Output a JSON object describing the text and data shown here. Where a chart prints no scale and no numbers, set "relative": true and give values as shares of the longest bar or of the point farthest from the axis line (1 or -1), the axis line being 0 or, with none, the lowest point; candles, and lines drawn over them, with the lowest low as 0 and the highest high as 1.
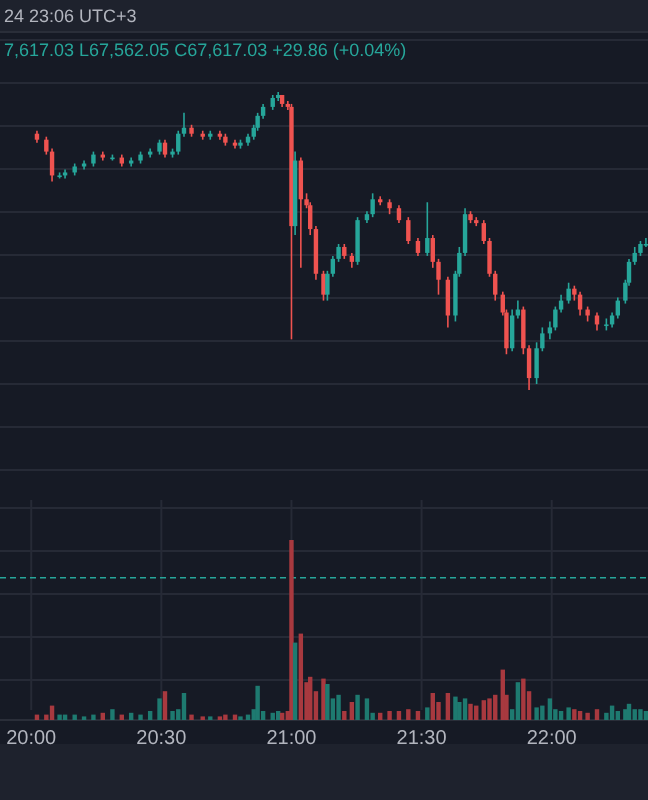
{
  "chart_data": [
    {
      "type": "candlestick",
      "relative": true,
      "grid": true,
      "tick_labels": false,
      "colors": [
        "#ef5350",
        "#ef5350",
        "#ef5350",
        "#26a69a",
        "#26a69a",
        "#26a69a",
        "#26a69a",
        "#26a69a",
        "#ef5350",
        "#26a69a",
        "#ef5350",
        "#26a69a",
        "#26a69a",
        "#26a69a",
        "#26a69a",
        "#ef5350",
        "#26a69a",
        "#26a69a",
        "#26a69a",
        "#ef5350",
        "#ef5350",
        "#26a69a",
        "#ef5350",
        "#ef5350",
        "#ef5350",
        "#26a69a",
        "#26a69a",
        "#26a69a",
        "#26a69a",
        "#26a69a",
        "#26a69a",
        "#26a69a",
        "#ef5350",
        "#ef5350",
        "#ef5350",
        "#26a69a",
        "#ef5350",
        "#ef5350",
        "#ef5350",
        "#ef5350",
        "#ef5350",
        "#26a69a",
        "#26a69a",
        "#26a69a",
        "#ef5350",
        "#ef5350",
        "#26a69a",
        "#26a69a",
        "#26a69a",
        "#ef5350",
        "#ef5350",
        "#ef5350",
        "#ef5350",
        "#ef5350",
        "#26a69a",
        "#ef5350",
        "#ef5350",
        "#ef5350",
        "#26a69a",
        "#26a69a",
        "#26a69a",
        "#ef5350",
        "#ef5350",
        "#ef5350",
        "#ef5350",
        "#ef5350",
        "#ef5350",
        "#ef5350",
        "#26a69a",
        "#26a69a",
        "#ef5350",
        "#ef5350",
        "#26a69a",
        "#26a69a",
        "#26a69a",
        "#26a69a",
        "#26a69a",
        "#26a69a",
        "#ef5350",
        "#ef5350",
        "#ef5350",
        "#ef5350",
        "#26a69a",
        "#26a69a",
        "#26a69a",
        "#26a69a",
        "#26a69a",
        "#26a69a",
        "#26a69a",
        "#26a69a"
      ],
      "annotations": [
        "24 23:06 UTC+3",
        "7,617.03 L67,562.05 C67,617.03 +29.86 (+0.04%)"
      ],
      "xlim": [
        19.88,
        22.37
      ],
      "x": [
        20.022,
        20.058,
        20.08,
        20.109,
        20.13,
        20.167,
        20.203,
        20.239,
        20.275,
        20.312,
        20.348,
        20.384,
        20.42,
        20.457,
        20.493,
        20.514,
        20.543,
        20.565,
        20.587,
        20.616,
        20.659,
        20.688,
        20.725,
        20.746,
        20.783,
        20.804,
        20.833,
        20.855,
        20.87,
        20.891,
        20.928,
        20.949,
        20.964,
        20.986,
        21.0,
        21.014,
        21.036,
        21.058,
        21.072,
        21.094,
        21.123,
        21.138,
        21.159,
        21.181,
        21.203,
        21.232,
        21.254,
        21.29,
        21.312,
        21.341,
        21.377,
        21.413,
        21.449,
        21.486,
        21.522,
        21.543,
        21.565,
        21.601,
        21.63,
        21.645,
        21.667,
        21.688,
        21.71,
        21.739,
        21.761,
        21.783,
        21.812,
        21.826,
        21.848,
        21.87,
        21.891,
        21.913,
        21.942,
        21.964,
        21.993,
        22.014,
        22.036,
        22.065,
        22.087,
        22.109,
        22.138,
        22.174,
        22.21,
        22.232,
        22.254,
        22.283,
        22.297,
        22.319,
        22.341,
        22.362
      ],
      "ohlc": [
        [
          0.86,
          0.87,
          0.83,
          0.84
        ],
        [
          0.84,
          0.85,
          0.79,
          0.8
        ],
        [
          0.8,
          0.81,
          0.7,
          0.72
        ],
        [
          0.72,
          0.73,
          0.71,
          0.72
        ],
        [
          0.72,
          0.74,
          0.71,
          0.73
        ],
        [
          0.73,
          0.76,
          0.72,
          0.75
        ],
        [
          0.75,
          0.77,
          0.74,
          0.76
        ],
        [
          0.76,
          0.8,
          0.75,
          0.79
        ],
        [
          0.79,
          0.8,
          0.77,
          0.78
        ],
        [
          0.78,
          0.79,
          0.77,
          0.78
        ],
        [
          0.78,
          0.79,
          0.75,
          0.76
        ],
        [
          0.76,
          0.78,
          0.75,
          0.77
        ],
        [
          0.77,
          0.8,
          0.76,
          0.79
        ],
        [
          0.79,
          0.81,
          0.78,
          0.8
        ],
        [
          0.8,
          0.84,
          0.79,
          0.83
        ],
        [
          0.83,
          0.84,
          0.78,
          0.79
        ],
        [
          0.79,
          0.81,
          0.78,
          0.8
        ],
        [
          0.8,
          0.87,
          0.79,
          0.86
        ],
        [
          0.86,
          0.93,
          0.85,
          0.88
        ],
        [
          0.88,
          0.89,
          0.85,
          0.86
        ],
        [
          0.86,
          0.87,
          0.84,
          0.85
        ],
        [
          0.85,
          0.87,
          0.84,
          0.86
        ],
        [
          0.86,
          0.87,
          0.84,
          0.85
        ],
        [
          0.85,
          0.86,
          0.82,
          0.83
        ],
        [
          0.83,
          0.84,
          0.81,
          0.82
        ],
        [
          0.82,
          0.84,
          0.81,
          0.83
        ],
        [
          0.83,
          0.86,
          0.82,
          0.85
        ],
        [
          0.85,
          0.89,
          0.84,
          0.88
        ],
        [
          0.88,
          0.93,
          0.87,
          0.92
        ],
        [
          0.92,
          0.96,
          0.91,
          0.95
        ],
        [
          0.95,
          0.99,
          0.94,
          0.98
        ],
        [
          0.98,
          1,
          0.97,
          0.99
        ],
        [
          0.99,
          0.99,
          0.95,
          0.96
        ],
        [
          0.96,
          0.97,
          0.94,
          0.95
        ],
        [
          0.95,
          0.96,
          0.17,
          0.55
        ],
        [
          0.55,
          0.8,
          0.52,
          0.77
        ],
        [
          0.77,
          0.78,
          0.41,
          0.64
        ],
        [
          0.64,
          0.66,
          0.61,
          0.62
        ],
        [
          0.62,
          0.63,
          0.52,
          0.54
        ],
        [
          0.54,
          0.55,
          0.37,
          0.39
        ],
        [
          0.39,
          0.4,
          0.3,
          0.32
        ],
        [
          0.32,
          0.4,
          0.3,
          0.39
        ],
        [
          0.39,
          0.45,
          0.38,
          0.44
        ],
        [
          0.44,
          0.49,
          0.43,
          0.48
        ],
        [
          0.48,
          0.49,
          0.44,
          0.45
        ],
        [
          0.45,
          0.46,
          0.41,
          0.43
        ],
        [
          0.43,
          0.58,
          0.42,
          0.57
        ],
        [
          0.57,
          0.6,
          0.56,
          0.59
        ],
        [
          0.59,
          0.66,
          0.58,
          0.64
        ],
        [
          0.64,
          0.65,
          0.62,
          0.63
        ],
        [
          0.63,
          0.64,
          0.59,
          0.61
        ],
        [
          0.61,
          0.62,
          0.56,
          0.57
        ],
        [
          0.57,
          0.58,
          0.49,
          0.5
        ],
        [
          0.5,
          0.51,
          0.45,
          0.46
        ],
        [
          0.46,
          0.63,
          0.45,
          0.51
        ],
        [
          0.51,
          0.52,
          0.41,
          0.43
        ],
        [
          0.43,
          0.44,
          0.32,
          0.37
        ],
        [
          0.37,
          0.38,
          0.21,
          0.25
        ],
        [
          0.25,
          0.4,
          0.23,
          0.39
        ],
        [
          0.39,
          0.48,
          0.38,
          0.46
        ],
        [
          0.46,
          0.61,
          0.45,
          0.59
        ],
        [
          0.59,
          0.6,
          0.56,
          0.57
        ],
        [
          0.57,
          0.58,
          0.55,
          0.56
        ],
        [
          0.56,
          0.57,
          0.49,
          0.5
        ],
        [
          0.5,
          0.51,
          0.38,
          0.39
        ],
        [
          0.39,
          0.4,
          0.3,
          0.32
        ],
        [
          0.32,
          0.33,
          0.25,
          0.26
        ],
        [
          0.26,
          0.27,
          0.12,
          0.14
        ],
        [
          0.14,
          0.27,
          0.13,
          0.25
        ],
        [
          0.25,
          0.3,
          0.24,
          0.27
        ],
        [
          0.27,
          0.28,
          0.12,
          0.14
        ],
        [
          0.14,
          0.15,
          0,
          0.04
        ],
        [
          0.04,
          0.16,
          0.02,
          0.14
        ],
        [
          0.14,
          0.21,
          0.13,
          0.19
        ],
        [
          0.19,
          0.23,
          0.17,
          0.21
        ],
        [
          0.21,
          0.28,
          0.2,
          0.27
        ],
        [
          0.27,
          0.32,
          0.26,
          0.3
        ],
        [
          0.3,
          0.36,
          0.29,
          0.34
        ],
        [
          0.34,
          0.35,
          0.3,
          0.32
        ],
        [
          0.32,
          0.33,
          0.25,
          0.27
        ],
        [
          0.27,
          0.28,
          0.23,
          0.25
        ],
        [
          0.25,
          0.26,
          0.2,
          0.22
        ],
        [
          0.22,
          0.24,
          0.2,
          0.22
        ],
        [
          0.22,
          0.26,
          0.21,
          0.25
        ],
        [
          0.25,
          0.31,
          0.24,
          0.3
        ],
        [
          0.3,
          0.37,
          0.29,
          0.36
        ],
        [
          0.36,
          0.44,
          0.35,
          0.43
        ],
        [
          0.43,
          0.48,
          0.42,
          0.46
        ],
        [
          0.46,
          0.5,
          0.45,
          0.49
        ],
        [
          0.49,
          0.51,
          0.48,
          0.49
        ]
      ]
    },
    {
      "type": "bar",
      "relative": true,
      "grid": true,
      "tick_labels": "x",
      "xlim": [
        19.88,
        22.37
      ],
      "xticks": [
        {
          "value": 20,
          "label": "20:00"
        },
        {
          "value": 20.5,
          "label": "20:30"
        },
        {
          "value": 21,
          "label": "21:00"
        },
        {
          "value": 21.5,
          "label": "21:30"
        },
        {
          "value": 22,
          "label": "22:00"
        }
      ],
      "ref_lines": [
        {
          "axis": "y",
          "value": 0.79,
          "color": "#26a69a",
          "line_style": "dashed"
        }
      ],
      "x": [
        20.022,
        20.058,
        20.08,
        20.109,
        20.13,
        20.167,
        20.203,
        20.239,
        20.275,
        20.312,
        20.348,
        20.384,
        20.42,
        20.457,
        20.493,
        20.514,
        20.543,
        20.565,
        20.587,
        20.616,
        20.659,
        20.688,
        20.725,
        20.746,
        20.783,
        20.804,
        20.833,
        20.855,
        20.87,
        20.891,
        20.928,
        20.949,
        20.964,
        20.986,
        21.0,
        21.014,
        21.036,
        21.058,
        21.072,
        21.094,
        21.123,
        21.138,
        21.159,
        21.181,
        21.203,
        21.232,
        21.254,
        21.29,
        21.312,
        21.341,
        21.377,
        21.413,
        21.449,
        21.486,
        21.522,
        21.543,
        21.565,
        21.601,
        21.63,
        21.645,
        21.667,
        21.688,
        21.71,
        21.739,
        21.761,
        21.783,
        21.812,
        21.826,
        21.848,
        21.87,
        21.891,
        21.913,
        21.942,
        21.964,
        21.993,
        22.014,
        22.036,
        22.065,
        22.087,
        22.109,
        22.138,
        22.174,
        22.21,
        22.232,
        22.254,
        22.283,
        22.297,
        22.319,
        22.341,
        22.362
      ],
      "values": [
        0.03,
        0.03,
        0.08,
        0.03,
        0.03,
        0.03,
        0.02,
        0.03,
        0.04,
        0.06,
        0.03,
        0.04,
        0.03,
        0.05,
        0.12,
        0.16,
        0.05,
        0.06,
        0.15,
        0.03,
        0.02,
        0.02,
        0.02,
        0.03,
        0.03,
        0.02,
        0.03,
        0.06,
        0.19,
        0.05,
        0.04,
        0.05,
        0.04,
        0.05,
        1,
        0.43,
        0.48,
        0.21,
        0.24,
        0.16,
        0.23,
        0.2,
        0.12,
        0.14,
        0.05,
        0.1,
        0.14,
        0.12,
        0.04,
        0.04,
        0.05,
        0.05,
        0.06,
        0.05,
        0.07,
        0.15,
        0.1,
        0.15,
        0.13,
        0.1,
        0.12,
        0.09,
        0.08,
        0.11,
        0.12,
        0.14,
        0.28,
        0.14,
        0.06,
        0.21,
        0.23,
        0.16,
        0.07,
        0.08,
        0.12,
        0.06,
        0.05,
        0.07,
        0.06,
        0.05,
        0.04,
        0.06,
        0.04,
        0.08,
        0.05,
        0.06,
        0.09,
        0.06,
        0.06,
        0.05
      ],
      "colors": [
        "#a8393f",
        "#a8393f",
        "#a8393f",
        "#1e7a70",
        "#1e7a70",
        "#1e7a70",
        "#1e7a70",
        "#1e7a70",
        "#a8393f",
        "#1e7a70",
        "#a8393f",
        "#1e7a70",
        "#1e7a70",
        "#1e7a70",
        "#1e7a70",
        "#a8393f",
        "#1e7a70",
        "#1e7a70",
        "#1e7a70",
        "#a8393f",
        "#a8393f",
        "#1e7a70",
        "#a8393f",
        "#a8393f",
        "#a8393f",
        "#1e7a70",
        "#1e7a70",
        "#1e7a70",
        "#1e7a70",
        "#1e7a70",
        "#1e7a70",
        "#1e7a70",
        "#a8393f",
        "#a8393f",
        "#a8393f",
        "#1e7a70",
        "#a8393f",
        "#a8393f",
        "#a8393f",
        "#a8393f",
        "#a8393f",
        "#1e7a70",
        "#1e7a70",
        "#1e7a70",
        "#a8393f",
        "#a8393f",
        "#1e7a70",
        "#1e7a70",
        "#1e7a70",
        "#a8393f",
        "#a8393f",
        "#a8393f",
        "#a8393f",
        "#a8393f",
        "#1e7a70",
        "#a8393f",
        "#a8393f",
        "#a8393f",
        "#1e7a70",
        "#1e7a70",
        "#1e7a70",
        "#a8393f",
        "#a8393f",
        "#a8393f",
        "#a8393f",
        "#a8393f",
        "#a8393f",
        "#a8393f",
        "#1e7a70",
        "#1e7a70",
        "#a8393f",
        "#a8393f",
        "#1e7a70",
        "#1e7a70",
        "#1e7a70",
        "#1e7a70",
        "#1e7a70",
        "#1e7a70",
        "#a8393f",
        "#a8393f",
        "#a8393f",
        "#a8393f",
        "#1e7a70",
        "#1e7a70",
        "#1e7a70",
        "#1e7a70",
        "#1e7a70",
        "#1e7a70",
        "#1e7a70",
        "#1e7a70"
      ]
    }
  ]
}
